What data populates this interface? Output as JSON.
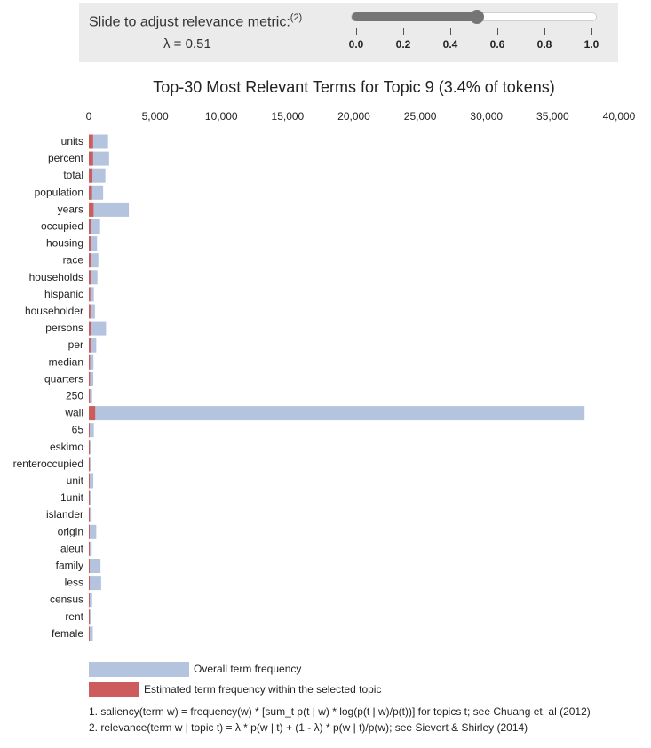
{
  "slider": {
    "label": "Slide to adjust relevance metric:",
    "footnote_ref": "(2)",
    "lambda_text": "λ = 0.51",
    "value": 0.51,
    "min": 0.0,
    "max": 1.0,
    "ticks": [
      "0.0",
      "0.2",
      "0.4",
      "0.6",
      "0.8",
      "1.0"
    ]
  },
  "chart_data": {
    "type": "bar",
    "orientation": "horizontal",
    "title": "Top-30 Most Relevant Terms for Topic 9 (3.4% of tokens)",
    "xlim": [
      0,
      40000
    ],
    "x_ticks": [
      0,
      5000,
      10000,
      15000,
      20000,
      25000,
      30000,
      35000,
      40000
    ],
    "x_tick_labels": [
      "0",
      "5,000",
      "10,000",
      "15,000",
      "20,000",
      "25,000",
      "30,000",
      "35,000",
      "40,000"
    ],
    "categories": [
      "units",
      "percent",
      "total",
      "population",
      "years",
      "occupied",
      "housing",
      "race",
      "households",
      "hispanic",
      "householder",
      "persons",
      "per",
      "median",
      "quarters",
      "250",
      "wall",
      "65",
      "eskimo",
      "renteroccupied",
      "unit",
      "1unit",
      "islander",
      "origin",
      "aleut",
      "family",
      "less",
      "census",
      "rent",
      "female"
    ],
    "series": [
      {
        "name": "Overall term frequency",
        "color": "#b4c4de",
        "values": [
          1450,
          1530,
          1250,
          1080,
          3020,
          850,
          620,
          720,
          650,
          380,
          460,
          1300,
          560,
          350,
          340,
          250,
          37400,
          380,
          200,
          180,
          340,
          200,
          210,
          560,
          220,
          880,
          930,
          250,
          200,
          300
        ]
      },
      {
        "name": "Estimated term frequency within the selected topic",
        "color": "#cd5c5c",
        "values": [
          320,
          320,
          270,
          240,
          360,
          180,
          150,
          160,
          150,
          110,
          120,
          190,
          130,
          90,
          90,
          80,
          480,
          60,
          40,
          40,
          60,
          40,
          40,
          60,
          40,
          70,
          70,
          40,
          40,
          40
        ]
      }
    ]
  },
  "legend": {
    "overall": "Overall term frequency",
    "estimated": "Estimated term frequency within the selected topic"
  },
  "footnotes": {
    "one": "1. saliency(term w) = frequency(w) * [sum_t p(t | w) * log(p(t | w)/p(t))] for topics t; see Chuang et. al (2012)",
    "two": "2. relevance(term w | topic t) = λ * p(w | t) + (1 - λ) * p(w | t)/p(w); see Sievert & Shirley (2014)"
  }
}
